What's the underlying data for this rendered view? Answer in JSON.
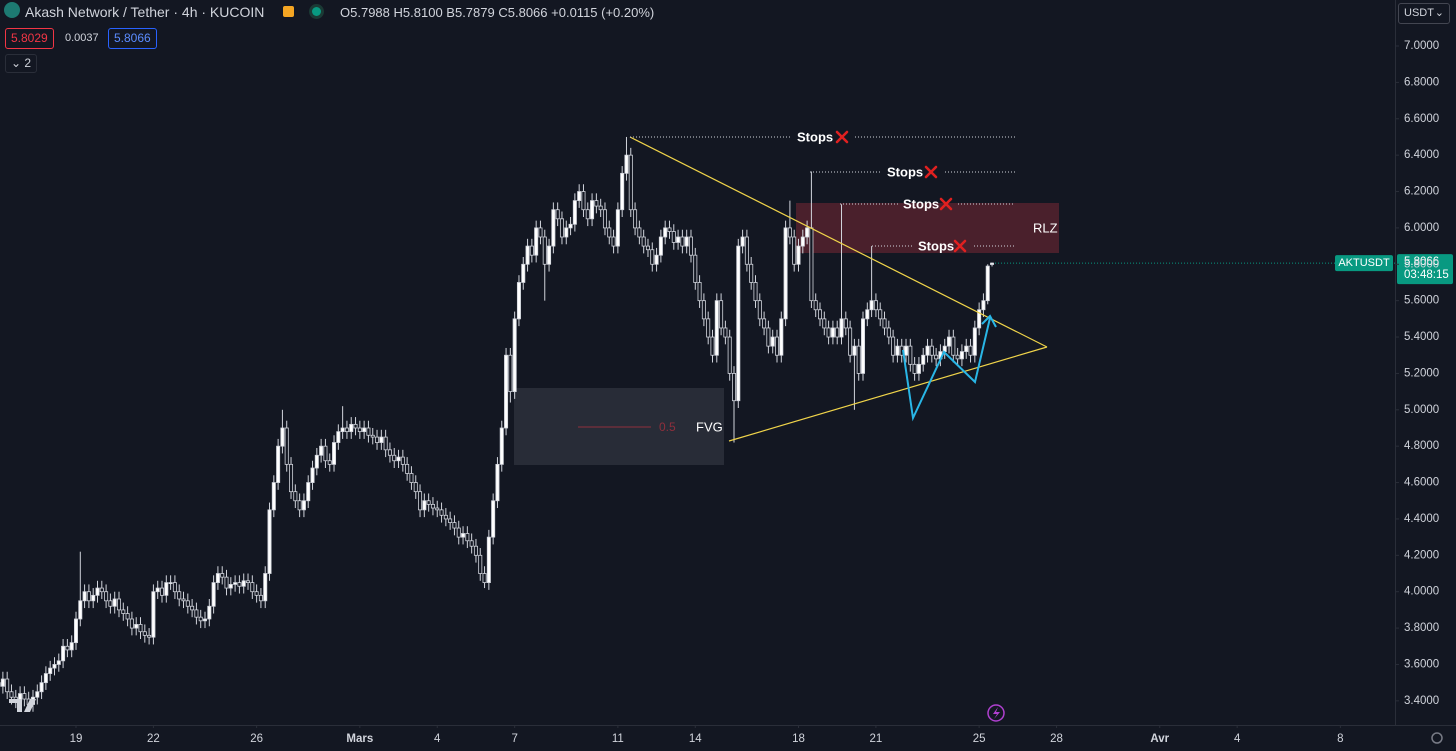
{
  "header": {
    "title": "Akash Network / Tether · 4h · KUCOIN",
    "ohlc": [
      {
        "label": "O",
        "value": "5.7988"
      },
      {
        "label": "H",
        "value": "5.8100"
      },
      {
        "label": "B",
        "value": "5.7879"
      },
      {
        "label": "C",
        "value": "5.8066"
      }
    ],
    "change": "+0.0115 (+0.20%)",
    "bid": 5.8029,
    "spread": 0.0037,
    "ask": 5.8066,
    "indicators": "2",
    "currency": "USDT"
  },
  "chart_data": {
    "type": "candlestick",
    "series": [
      {
        "name": "AKTUSDT",
        "color_up": "#ffffff",
        "color_down": "#131722",
        "wick_color": "#d1d4dc",
        "open": [
          3.5,
          3.48,
          3.52,
          3.45,
          3.42,
          3.4,
          3.44,
          3.41,
          3.38,
          3.42,
          3.45,
          3.5,
          3.55,
          3.58,
          3.6,
          3.62,
          3.7,
          3.68,
          3.72,
          3.85,
          3.95,
          4.0,
          3.95,
          3.98,
          4.02,
          4.0,
          3.95,
          3.92,
          3.96,
          3.9,
          3.88,
          3.85,
          3.8,
          3.82,
          3.78,
          3.76,
          3.75,
          4.0,
          4.02,
          3.98,
          4.05,
          4.05,
          4.0,
          3.96,
          3.95,
          3.92,
          3.9,
          3.86,
          3.84,
          3.85,
          3.92,
          4.05,
          4.1,
          4.08,
          4.02,
          4.04,
          4.05,
          4.03,
          4.06,
          4.05,
          4.0,
          3.98,
          3.95,
          4.1,
          4.45,
          4.6,
          4.8,
          4.9,
          4.7,
          4.55,
          4.5,
          4.45,
          4.5,
          4.6,
          4.68,
          4.75,
          4.8,
          4.72,
          4.7,
          4.82,
          4.88,
          4.9,
          4.88,
          4.92,
          4.9,
          4.88,
          4.9,
          4.86,
          4.85,
          4.82,
          4.85,
          4.78,
          4.75,
          4.72,
          4.74,
          4.7,
          4.65,
          4.6,
          4.55,
          4.45,
          4.5,
          4.48,
          4.46,
          4.45,
          4.42,
          4.4,
          4.38,
          4.35,
          4.3,
          4.32,
          4.28,
          4.25,
          4.2,
          4.1,
          4.05,
          4.3,
          4.5,
          4.7,
          4.9,
          5.3,
          5.1,
          5.5,
          5.7,
          5.8,
          5.9,
          5.85,
          6.0,
          5.95,
          5.8,
          5.9,
          6.1,
          6.05,
          5.95,
          6.0,
          6.02,
          6.15,
          6.2,
          6.1,
          6.05,
          6.15,
          6.12,
          6.1,
          6.0,
          5.95,
          5.9,
          6.1,
          6.3,
          6.4,
          6.1,
          6.0,
          5.95,
          5.9,
          5.88,
          5.8,
          5.85,
          5.95,
          6.0,
          5.98,
          5.92,
          5.95,
          5.9,
          5.95,
          5.85,
          5.7,
          5.6,
          5.5,
          5.4,
          5.3,
          5.6,
          5.45,
          5.4,
          5.2,
          5.05,
          5.9,
          5.95,
          5.8,
          5.7,
          5.6,
          5.5,
          5.45,
          5.35,
          5.4,
          5.3,
          5.5,
          6.0,
          5.95,
          5.8,
          5.9,
          5.95,
          6.0,
          5.6,
          5.55,
          5.5,
          5.45,
          5.4,
          5.45,
          5.4,
          5.5,
          5.45,
          5.3,
          5.35,
          5.2,
          5.5,
          5.55,
          5.6,
          5.55,
          5.5,
          5.45,
          5.4,
          5.3,
          5.35,
          5.3,
          5.35,
          5.25,
          5.2,
          5.25,
          5.3,
          5.35,
          5.3,
          5.28,
          5.32,
          5.35,
          5.4,
          5.3,
          5.28,
          5.32,
          5.35,
          5.3,
          5.45,
          5.55,
          5.6,
          5.7988
        ],
        "high": [
          3.54,
          3.56,
          3.56,
          3.49,
          3.46,
          3.48,
          3.48,
          3.45,
          3.46,
          3.49,
          3.54,
          3.59,
          3.62,
          3.64,
          3.66,
          3.74,
          3.74,
          3.76,
          3.89,
          4.22,
          4.04,
          4.04,
          4.02,
          4.06,
          4.06,
          4.04,
          3.99,
          4.0,
          4.0,
          3.94,
          3.92,
          3.89,
          3.86,
          3.86,
          3.82,
          3.8,
          4.04,
          4.06,
          4.06,
          4.09,
          4.09,
          4.09,
          4.04,
          4.0,
          3.99,
          3.96,
          3.94,
          3.9,
          3.89,
          3.96,
          4.09,
          4.14,
          4.14,
          4.12,
          4.08,
          4.09,
          4.09,
          4.1,
          4.1,
          4.09,
          4.04,
          4.02,
          4.14,
          4.49,
          4.64,
          4.84,
          5.0,
          4.94,
          4.74,
          4.59,
          4.54,
          4.54,
          4.64,
          4.72,
          4.79,
          4.84,
          4.84,
          4.76,
          4.86,
          4.92,
          5.02,
          4.94,
          4.96,
          4.96,
          4.94,
          4.94,
          4.94,
          4.9,
          4.89,
          4.89,
          4.89,
          4.82,
          4.79,
          4.78,
          4.78,
          4.74,
          4.69,
          4.64,
          4.59,
          4.54,
          4.54,
          4.52,
          4.5,
          4.49,
          4.46,
          4.44,
          4.42,
          4.39,
          4.36,
          4.36,
          4.32,
          4.29,
          4.24,
          4.14,
          4.34,
          4.54,
          4.74,
          4.94,
          5.34,
          5.34,
          5.54,
          5.74,
          5.84,
          5.94,
          5.94,
          6.04,
          6.04,
          5.99,
          5.94,
          6.14,
          6.14,
          6.09,
          6.04,
          6.06,
          6.19,
          6.24,
          6.24,
          6.14,
          6.19,
          6.19,
          6.16,
          6.14,
          6.04,
          5.99,
          6.14,
          6.34,
          6.5,
          6.44,
          6.14,
          6.04,
          5.99,
          5.94,
          5.92,
          5.89,
          5.99,
          6.04,
          6.04,
          6.02,
          5.99,
          5.99,
          5.99,
          5.99,
          5.89,
          5.74,
          5.64,
          5.54,
          5.44,
          5.64,
          5.64,
          5.49,
          5.44,
          5.24,
          5.94,
          5.99,
          5.99,
          5.84,
          5.74,
          5.64,
          5.54,
          5.49,
          5.44,
          5.44,
          5.54,
          6.04,
          6.15,
          5.99,
          5.94,
          5.99,
          6.04,
          6.31,
          5.64,
          5.59,
          5.54,
          5.49,
          5.49,
          5.49,
          6.13,
          5.54,
          5.49,
          5.39,
          5.39,
          5.54,
          5.59,
          5.9,
          5.64,
          5.59,
          5.54,
          5.49,
          5.44,
          5.39,
          5.39,
          5.39,
          5.39,
          5.29,
          5.29,
          5.34,
          5.39,
          5.39,
          5.34,
          5.36,
          5.39,
          5.44,
          5.44,
          5.34,
          5.36,
          5.39,
          5.39,
          5.49,
          5.59,
          5.64,
          5.8,
          5.81
        ],
        "low": [
          3.44,
          3.44,
          3.41,
          3.38,
          3.36,
          3.36,
          3.37,
          3.34,
          3.34,
          3.38,
          3.41,
          3.46,
          3.51,
          3.54,
          3.56,
          3.58,
          3.64,
          3.64,
          3.68,
          3.81,
          3.91,
          3.91,
          3.91,
          3.94,
          3.96,
          3.91,
          3.88,
          3.88,
          3.86,
          3.84,
          3.81,
          3.76,
          3.76,
          3.74,
          3.72,
          3.71,
          3.71,
          3.96,
          3.94,
          3.94,
          4.01,
          3.96,
          3.92,
          3.91,
          3.88,
          3.86,
          3.82,
          3.8,
          3.8,
          3.81,
          3.88,
          4.01,
          4.04,
          3.98,
          3.98,
          4.0,
          3.99,
          3.99,
          4.01,
          3.96,
          3.94,
          3.91,
          3.91,
          4.06,
          4.41,
          4.56,
          4.76,
          4.66,
          4.51,
          4.46,
          4.41,
          4.41,
          4.46,
          4.56,
          4.64,
          4.71,
          4.68,
          4.66,
          4.66,
          4.78,
          4.84,
          4.84,
          4.84,
          4.86,
          4.84,
          4.84,
          4.82,
          4.81,
          4.78,
          4.78,
          4.74,
          4.71,
          4.68,
          4.68,
          4.66,
          4.61,
          4.56,
          4.51,
          4.41,
          4.41,
          4.44,
          4.42,
          4.41,
          4.38,
          4.36,
          4.34,
          4.31,
          4.26,
          4.26,
          4.24,
          4.21,
          4.16,
          4.06,
          4.02,
          4.01,
          4.26,
          4.46,
          4.66,
          4.86,
          5.04,
          5.06,
          5.46,
          5.66,
          5.76,
          5.81,
          5.81,
          5.91,
          5.6,
          5.76,
          5.86,
          6.01,
          5.91,
          5.91,
          5.96,
          5.98,
          6.11,
          6.06,
          6.01,
          6.01,
          6.08,
          6.06,
          5.96,
          5.91,
          5.86,
          5.86,
          6.06,
          6.26,
          6.06,
          5.96,
          5.91,
          5.86,
          5.84,
          5.76,
          5.76,
          5.81,
          5.91,
          5.94,
          5.88,
          5.88,
          5.86,
          5.86,
          5.81,
          5.66,
          5.56,
          5.46,
          5.36,
          5.26,
          5.26,
          5.41,
          5.36,
          5.16,
          4.82,
          5.01,
          5.86,
          5.76,
          5.66,
          5.56,
          5.46,
          5.41,
          5.31,
          5.31,
          5.26,
          5.26,
          5.46,
          5.91,
          5.76,
          5.76,
          5.86,
          5.91,
          5.56,
          5.51,
          5.46,
          5.41,
          5.36,
          5.36,
          5.36,
          5.36,
          5.41,
          5.26,
          5.0,
          5.16,
          5.16,
          5.46,
          5.51,
          5.51,
          5.46,
          5.41,
          5.36,
          5.26,
          5.26,
          5.26,
          5.26,
          5.21,
          5.16,
          5.16,
          5.21,
          5.26,
          5.26,
          5.24,
          5.24,
          5.28,
          5.31,
          5.26,
          5.24,
          5.24,
          5.28,
          5.26,
          5.26,
          5.41,
          5.51,
          5.58,
          5.7879
        ],
        "close": [
          3.48,
          3.52,
          3.45,
          3.42,
          3.4,
          3.44,
          3.41,
          3.38,
          3.42,
          3.45,
          3.5,
          3.55,
          3.58,
          3.6,
          3.62,
          3.7,
          3.68,
          3.72,
          3.85,
          3.95,
          4.0,
          3.95,
          3.98,
          4.02,
          4.0,
          3.95,
          3.92,
          3.96,
          3.9,
          3.88,
          3.85,
          3.8,
          3.82,
          3.78,
          3.76,
          3.75,
          4.0,
          4.02,
          3.98,
          4.05,
          4.05,
          4.0,
          3.96,
          3.95,
          3.92,
          3.9,
          3.86,
          3.84,
          3.85,
          3.92,
          4.05,
          4.1,
          4.08,
          4.02,
          4.04,
          4.05,
          4.03,
          4.06,
          4.05,
          4.0,
          3.98,
          3.95,
          4.1,
          4.45,
          4.6,
          4.8,
          4.9,
          4.7,
          4.55,
          4.5,
          4.45,
          4.5,
          4.6,
          4.68,
          4.75,
          4.8,
          4.72,
          4.7,
          4.82,
          4.88,
          4.9,
          4.88,
          4.92,
          4.9,
          4.88,
          4.9,
          4.86,
          4.85,
          4.82,
          4.85,
          4.78,
          4.75,
          4.72,
          4.74,
          4.7,
          4.65,
          4.6,
          4.55,
          4.45,
          4.5,
          4.48,
          4.46,
          4.45,
          4.42,
          4.4,
          4.38,
          4.35,
          4.3,
          4.32,
          4.28,
          4.25,
          4.2,
          4.1,
          4.05,
          4.3,
          4.5,
          4.7,
          4.9,
          5.3,
          5.1,
          5.5,
          5.7,
          5.8,
          5.9,
          5.85,
          6.0,
          5.95,
          5.8,
          5.9,
          6.1,
          6.05,
          5.95,
          6.0,
          6.02,
          6.15,
          6.2,
          6.1,
          6.05,
          6.15,
          6.12,
          6.1,
          6.0,
          5.95,
          5.9,
          6.1,
          6.3,
          6.4,
          6.1,
          6.0,
          5.95,
          5.9,
          5.88,
          5.8,
          5.85,
          5.95,
          6.0,
          5.98,
          5.92,
          5.95,
          5.9,
          5.95,
          5.85,
          5.7,
          5.6,
          5.5,
          5.4,
          5.3,
          5.6,
          5.45,
          5.4,
          5.2,
          5.05,
          5.9,
          5.95,
          5.8,
          5.7,
          5.6,
          5.5,
          5.45,
          5.35,
          5.4,
          5.3,
          5.5,
          6.0,
          5.95,
          5.8,
          5.9,
          5.95,
          6.0,
          5.6,
          5.55,
          5.5,
          5.45,
          5.4,
          5.45,
          5.4,
          5.5,
          5.45,
          5.3,
          5.35,
          5.2,
          5.5,
          5.55,
          5.6,
          5.55,
          5.5,
          5.45,
          5.4,
          5.3,
          5.35,
          5.3,
          5.35,
          5.25,
          5.2,
          5.25,
          5.3,
          5.35,
          5.3,
          5.28,
          5.32,
          5.35,
          5.4,
          5.3,
          5.28,
          5.32,
          5.35,
          5.3,
          5.45,
          5.55,
          5.6,
          5.79,
          5.8066
        ]
      }
    ],
    "ylim": [
      3.2672,
      7.2529
    ],
    "yticks": [
      {
        "value": 3.4,
        "label": "3.4000"
      },
      {
        "value": 3.6,
        "label": "3.6000"
      },
      {
        "value": 3.8,
        "label": "3.8000"
      },
      {
        "value": 4.0,
        "label": "4.0000"
      },
      {
        "value": 4.2,
        "label": "4.2000"
      },
      {
        "value": 4.4,
        "label": "4.4000"
      },
      {
        "value": 4.6,
        "label": "4.6000"
      },
      {
        "value": 4.8,
        "label": "4.8000"
      },
      {
        "value": 5.0,
        "label": "5.0000"
      },
      {
        "value": 5.2,
        "label": "5.2000"
      },
      {
        "value": 5.4,
        "label": "5.4000"
      },
      {
        "value": 5.6,
        "label": "5.6000"
      },
      {
        "value": 5.8,
        "label": "5.8000"
      },
      {
        "value": 6.0,
        "label": "6.0000"
      },
      {
        "value": 6.2,
        "label": "6.2000"
      },
      {
        "value": 6.4,
        "label": "6.4000"
      },
      {
        "value": 6.6,
        "label": "6.6000"
      },
      {
        "value": 6.8,
        "label": "6.8000"
      },
      {
        "value": 7.0,
        "label": "7.0000"
      }
    ],
    "xlim": [
      0.33,
      324.7
    ],
    "xticks": [
      {
        "value": 18,
        "label": "19"
      },
      {
        "value": 36,
        "label": "22"
      },
      {
        "value": 60,
        "label": "26"
      },
      {
        "value": 84,
        "label": "Mars"
      },
      {
        "value": 102,
        "label": "4"
      },
      {
        "value": 120,
        "label": "7"
      },
      {
        "value": 144,
        "label": "11"
      },
      {
        "value": 162,
        "label": "14"
      },
      {
        "value": 186,
        "label": "18"
      },
      {
        "value": 204,
        "label": "21"
      },
      {
        "value": 228,
        "label": "25"
      },
      {
        "value": 246,
        "label": "28"
      },
      {
        "value": 270,
        "label": "Avr"
      },
      {
        "value": 288,
        "label": "4"
      },
      {
        "value": 312,
        "label": "8"
      }
    ],
    "countdown": "03:48:15",
    "price_label_color": "#089981",
    "annotations": {
      "stops": [
        "Stops",
        "Stops",
        "Stops",
        "Stops"
      ],
      "zones": [
        "RLZ",
        "FVG"
      ],
      "fib": "0.5"
    }
  }
}
